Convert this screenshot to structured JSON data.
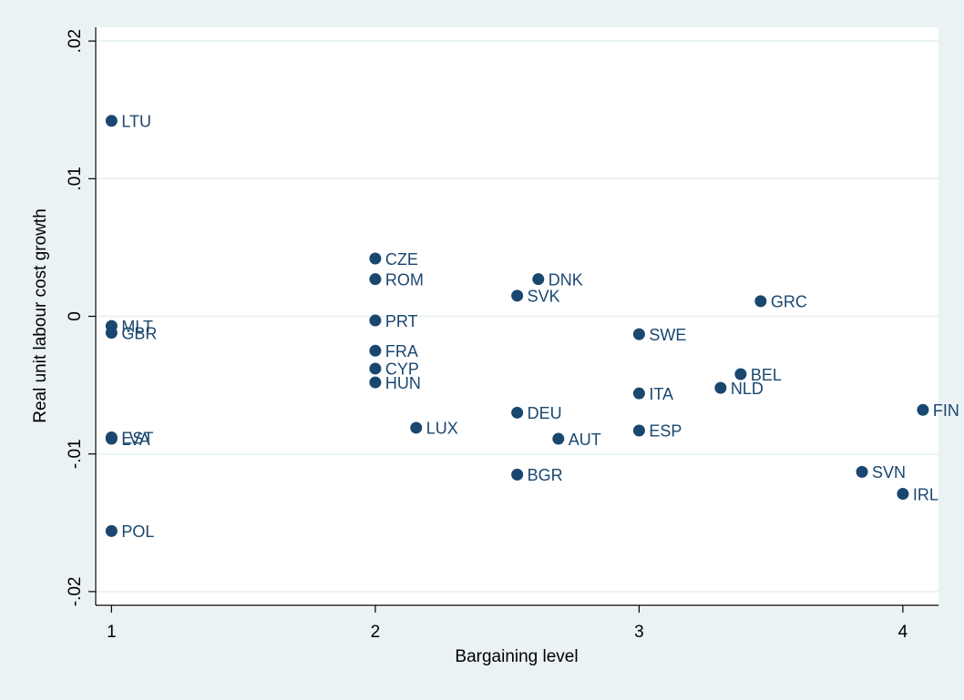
{
  "chart_data": {
    "type": "scatter",
    "x_label": "Bargaining level",
    "y_label": "Real unit labour cost growth",
    "color": "#1a476f",
    "grid": true,
    "xlim": [
      0.94,
      4.135
    ],
    "ylim": [
      -0.021,
      0.021
    ],
    "xticks": [
      1,
      2,
      3,
      4
    ],
    "yticks": [
      {
        "value": -0.02,
        "label": "-.02"
      },
      {
        "value": -0.01,
        "label": "-.01"
      },
      0,
      {
        "value": 0.01,
        "label": ".01"
      },
      {
        "value": 0.02,
        "label": ".02"
      }
    ],
    "labels": [
      "LTU",
      "MLT",
      "GBR",
      "EST",
      "LVA",
      "POL",
      "CZE",
      "ROM",
      "PRT",
      "FRA",
      "CYP",
      "HUN",
      "LUX",
      "DNK",
      "SVK",
      "DEU",
      "BGR",
      "AUT",
      "SWE",
      "ITA",
      "ESP",
      "GRC",
      "BEL",
      "NLD",
      "FIN",
      "SVN",
      "IRL"
    ],
    "x": [
      1,
      1,
      1,
      1,
      1,
      1,
      2,
      2,
      2,
      2,
      2,
      2,
      2.155,
      2.618,
      2.538,
      2.538,
      2.538,
      2.694,
      3,
      3,
      3,
      3.461,
      3.385,
      3.309,
      4.076,
      3.845,
      4
    ],
    "values": [
      0.0142,
      -0.0007,
      -0.0012,
      -0.0088,
      -0.0089,
      -0.0156,
      0.0042,
      0.0027,
      -0.0003,
      -0.0025,
      -0.0038,
      -0.0048,
      -0.0081,
      0.0027,
      0.0015,
      -0.007,
      -0.0115,
      -0.0089,
      -0.0013,
      -0.0056,
      -0.0083,
      0.0011,
      -0.0042,
      -0.0052,
      -0.0068,
      -0.0113,
      -0.0129
    ]
  }
}
